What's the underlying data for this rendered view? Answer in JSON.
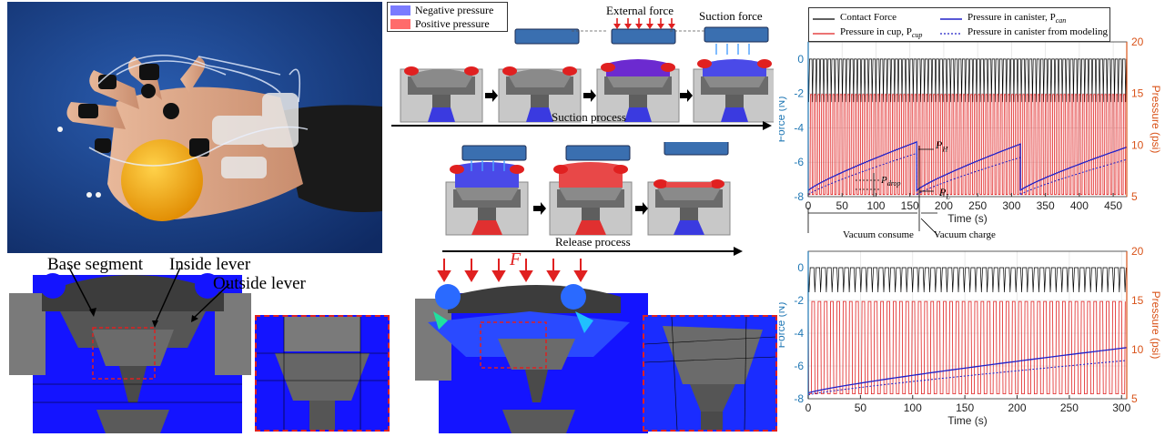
{
  "legend": {
    "negative": "Negative pressure",
    "positive": "Positive pressure"
  },
  "suction": {
    "external_force": "External force",
    "suction_force": "Suction force",
    "process": "Suction process"
  },
  "release": {
    "process": "Release process"
  },
  "fem": {
    "base_segment": "Base segment",
    "inside_lever": "Inside lever",
    "outside_lever": "Outside lever",
    "force_symbol": "F"
  },
  "annotations": {
    "p_h": "P",
    "p_h_sub": "H",
    "p_l": "P",
    "p_l_sub": "L",
    "p_drop": "P",
    "p_drop_sub": "drop",
    "vacuum_consume": "Vacuum consume",
    "vacuum_charge": "Vacuum charge"
  },
  "colors": {
    "negative": "#7b7bff",
    "positive": "#ff6b6b",
    "contact": "#000000",
    "cup": "#e02020",
    "canister": "#2020c8",
    "force_axis": "#1f77b4",
    "pressure_axis": "#d95319"
  },
  "chart_data": [
    {
      "type": "line",
      "xlabel": "Time (s)",
      "ylabel_left": "Force (N)",
      "ylabel_right": "Pressure (psi)",
      "xlim": [
        0,
        470
      ],
      "ylim_left": [
        -8,
        1
      ],
      "ylim_right": [
        5,
        20
      ],
      "xticks": [
        0,
        50,
        100,
        150,
        200,
        250,
        300,
        350,
        400,
        450
      ],
      "yticks_left": [
        0,
        -2,
        -4,
        -6,
        -8
      ],
      "yticks_right": [
        20,
        15,
        10,
        5
      ],
      "grid": true,
      "legend_position": "top",
      "series": [
        {
          "name": "Contact Force",
          "axis": "left",
          "baseline": 0,
          "dip": -2.5,
          "period": 5.5
        },
        {
          "name": "Pressure in cup, P",
          "name_sub": "cup",
          "axis": "right",
          "high": 14.9,
          "low": 5.2,
          "period": 5.5
        },
        {
          "name": "Pressure in canister, P",
          "name_sub": "can",
          "axis": "right",
          "segments": [
            [
              0,
              5.6,
              160,
              10.3
            ],
            [
              160,
              5.6,
              313,
              10.1
            ],
            [
              313,
              5.6,
              470,
              9.8
            ]
          ]
        },
        {
          "name": "Pressure in canister from modeling",
          "axis": "right",
          "segments": [
            [
              0,
              5.2,
              160,
              9.2
            ],
            [
              160,
              5.2,
              313,
              8.8
            ],
            [
              313,
              5.2,
              470,
              8.6
            ]
          ]
        }
      ]
    },
    {
      "type": "line",
      "xlabel": "Time (s)",
      "ylabel_left": "Force (N)",
      "ylabel_right": "Pressure (psi)",
      "xlim": [
        0,
        305
      ],
      "ylim_left": [
        -8,
        1
      ],
      "ylim_right": [
        5,
        20
      ],
      "xticks": [
        0,
        50,
        100,
        150,
        200,
        250,
        300
      ],
      "yticks_left": [
        0,
        -2,
        -4,
        -6,
        -8
      ],
      "yticks_right": [
        20,
        15,
        10,
        5
      ],
      "grid": true,
      "series": [
        {
          "name": "Contact Force",
          "axis": "left",
          "baseline": 0,
          "dip": -1.5,
          "period": 5.5
        },
        {
          "name": "Pressure in cup",
          "axis": "right",
          "high": 14.9,
          "low": 5.5,
          "period": 6.0
        },
        {
          "name": "Pressure in canister",
          "axis": "right",
          "segments": [
            [
              0,
              5.6,
              305,
              10.2
            ]
          ]
        },
        {
          "name": "Pressure in canister from modeling",
          "axis": "right",
          "segments": [
            [
              0,
              5.4,
              305,
              8.9
            ]
          ]
        }
      ]
    }
  ]
}
